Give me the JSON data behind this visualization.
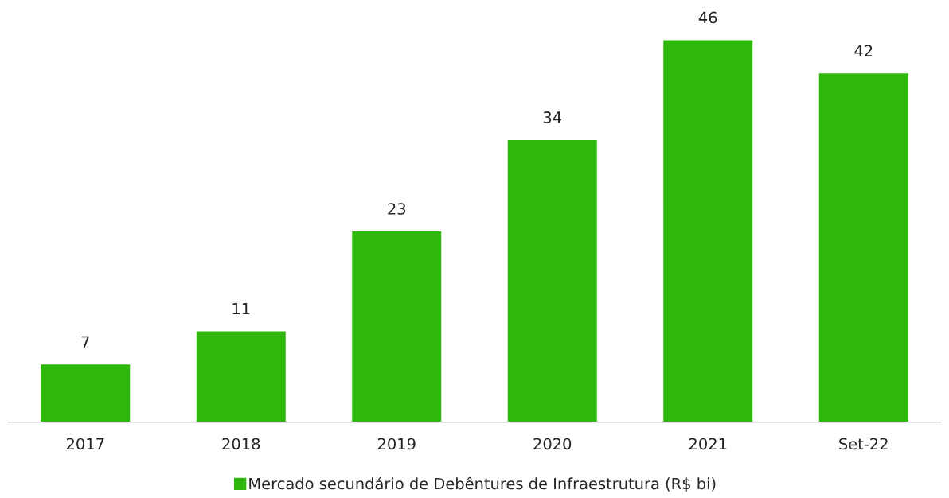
{
  "chart_data": {
    "type": "bar",
    "categories": [
      "2017",
      "2018",
      "2019",
      "2020",
      "2021",
      "Set-22"
    ],
    "series": [
      {
        "name": "Mercado secundário de Debêntures de Infraestrutura (R$ bi)",
        "color": "#2eb80b",
        "values": [
          7,
          11,
          23,
          34,
          46,
          42
        ]
      }
    ],
    "data_labels": true,
    "legend": "bottom",
    "grid": false,
    "tick_labels": "x"
  }
}
